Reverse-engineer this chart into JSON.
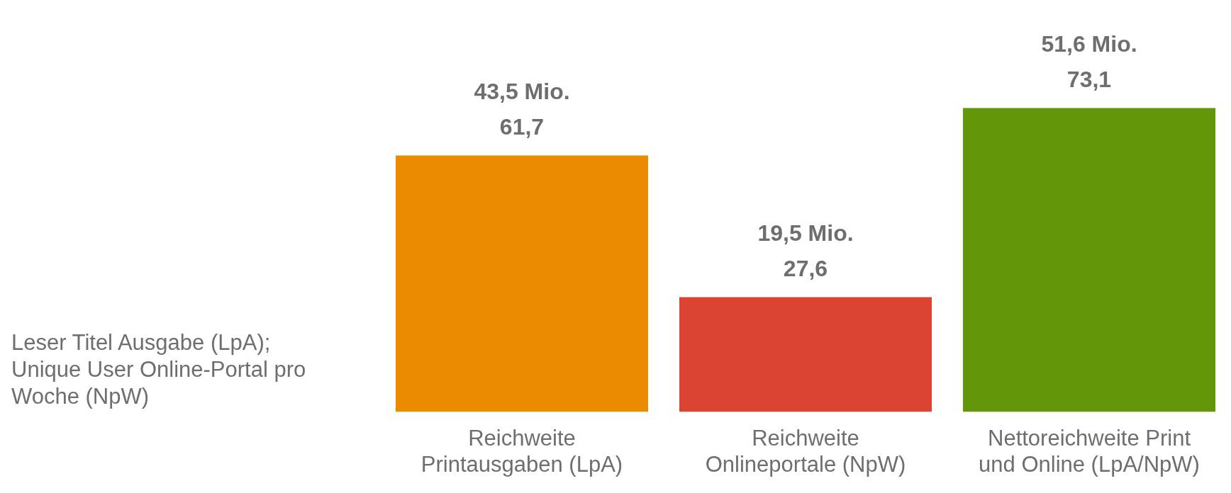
{
  "chart_data": {
    "type": "bar",
    "ylabel": "Leser Titel Ausgabe (LpA); Unique User Online-Portal pro Woche (NpW)",
    "categories": [
      "Reichweite Printausgaben (LpA)",
      "Reichweite Onlineportale (NpW)",
      "Nettoreichweite Print und Online (LpA/NpW)"
    ],
    "values": [
      61.7,
      27.6,
      73.1
    ],
    "colors": [
      "#eb8c00",
      "#db4430",
      "#64960a"
    ],
    "value_labels": [
      "43,5 Mio.\n61,7",
      "19,5 Mio.\n27,6",
      "51,6 Mio.\n73,1"
    ],
    "grid": false,
    "legend": false
  }
}
